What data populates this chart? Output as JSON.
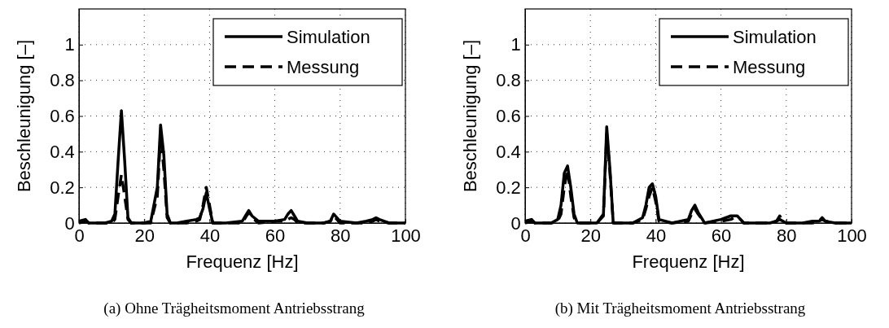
{
  "chart_data": [
    {
      "type": "line",
      "xlabel": "Frequenz [Hz]",
      "ylabel": "Beschleunigung [–]",
      "xlim": [
        0,
        100
      ],
      "xticks": [
        0,
        20,
        40,
        60,
        80,
        100
      ],
      "ylim": [
        0,
        1.2
      ],
      "yticks": [
        0,
        0.2,
        0.4,
        0.6,
        0.8,
        1
      ],
      "grid": true,
      "legend": "top right",
      "annotations": [
        "(a) Ohne Trägheitsmoment Antriebsstrang"
      ],
      "x": [
        0,
        2,
        3,
        5,
        8,
        10,
        11,
        12,
        13,
        14,
        15,
        16,
        20,
        22,
        24,
        25,
        26,
        27,
        28,
        30,
        33,
        36,
        37,
        38,
        39,
        40,
        41,
        45,
        50,
        51,
        52,
        53,
        55,
        60,
        63,
        64,
        65,
        66,
        67,
        70,
        75,
        77,
        78,
        79,
        80,
        85,
        88,
        90,
        91,
        92,
        95,
        100
      ],
      "series": [
        {
          "name": "Simulation",
          "color": "#000000",
          "line_style": "solid",
          "values": [
            0.01,
            0.02,
            0,
            0,
            0,
            0.01,
            0.05,
            0.35,
            0.63,
            0.35,
            0.03,
            0,
            0,
            0.01,
            0.2,
            0.55,
            0.38,
            0.05,
            0,
            0,
            0.01,
            0.02,
            0.03,
            0.08,
            0.17,
            0.08,
            0,
            0,
            0.01,
            0.04,
            0.07,
            0.04,
            0.01,
            0.01,
            0.02,
            0.05,
            0.07,
            0.04,
            0.01,
            0,
            0,
            0.01,
            0.05,
            0.03,
            0.01,
            0,
            0.01,
            0.02,
            0.03,
            0.02,
            0,
            0
          ]
        },
        {
          "name": "Messung",
          "color": "#000000",
          "line_style": "dashed",
          "values": [
            0,
            0.01,
            0,
            0,
            0,
            0,
            0.02,
            0.15,
            0.27,
            0.15,
            0.02,
            0,
            0,
            0,
            0.15,
            0.5,
            0.3,
            0.03,
            0,
            0,
            0,
            0.01,
            0.02,
            0.1,
            0.2,
            0.1,
            0,
            0,
            0,
            0.03,
            0.06,
            0.03,
            0,
            0.01,
            0.01,
            0.02,
            0.03,
            0.02,
            0,
            0,
            0,
            0.01,
            0.04,
            0.02,
            0,
            0,
            0,
            0.01,
            0.02,
            0.01,
            0,
            0
          ]
        }
      ]
    },
    {
      "type": "line",
      "xlabel": "Frequenz [Hz]",
      "ylabel": "Beschleunigung [–]",
      "xlim": [
        0,
        100
      ],
      "xticks": [
        0,
        20,
        40,
        60,
        80,
        100
      ],
      "ylim": [
        0,
        1.2
      ],
      "yticks": [
        0,
        0.2,
        0.4,
        0.6,
        0.8,
        1
      ],
      "grid": true,
      "legend": "top right",
      "annotations": [
        "(b) Mit Trägheitsmoment Antriebsstrang"
      ],
      "x": [
        0,
        2,
        3,
        5,
        8,
        10,
        11,
        12,
        13,
        14,
        15,
        16,
        20,
        22,
        24,
        25,
        26,
        27,
        28,
        30,
        33,
        36,
        37,
        38,
        39,
        40,
        41,
        45,
        50,
        51,
        52,
        53,
        55,
        60,
        63,
        64,
        65,
        66,
        67,
        70,
        75,
        77,
        78,
        79,
        80,
        85,
        88,
        90,
        91,
        92,
        95,
        100
      ],
      "series": [
        {
          "name": "Simulation",
          "color": "#000000",
          "line_style": "solid",
          "values": [
            0.01,
            0.02,
            0,
            0,
            0,
            0.02,
            0.1,
            0.28,
            0.32,
            0.2,
            0.05,
            0,
            0,
            0,
            0.05,
            0.54,
            0.3,
            0,
            0,
            0,
            0,
            0.03,
            0.1,
            0.2,
            0.22,
            0.15,
            0.02,
            0,
            0.02,
            0.07,
            0.1,
            0.06,
            0,
            0.02,
            0.04,
            0.04,
            0.04,
            0.02,
            0,
            0,
            0,
            0.01,
            0.02,
            0.01,
            0,
            0,
            0.01,
            0.01,
            0.02,
            0.01,
            0,
            0
          ]
        },
        {
          "name": "Messung",
          "color": "#000000",
          "line_style": "dashed",
          "values": [
            0,
            0.01,
            0,
            0,
            0,
            0.01,
            0.05,
            0.2,
            0.3,
            0.15,
            0.03,
            0,
            0,
            0,
            0.04,
            0.5,
            0.28,
            0,
            0,
            0,
            0,
            0.02,
            0.08,
            0.15,
            0.2,
            0.12,
            0.01,
            0,
            0.01,
            0.05,
            0.08,
            0.05,
            0,
            0.01,
            0.02,
            0.03,
            0.03,
            0.02,
            0,
            0,
            0,
            0.01,
            0.04,
            0.01,
            0,
            0,
            0,
            0.01,
            0.03,
            0.01,
            0,
            0
          ]
        }
      ]
    }
  ]
}
